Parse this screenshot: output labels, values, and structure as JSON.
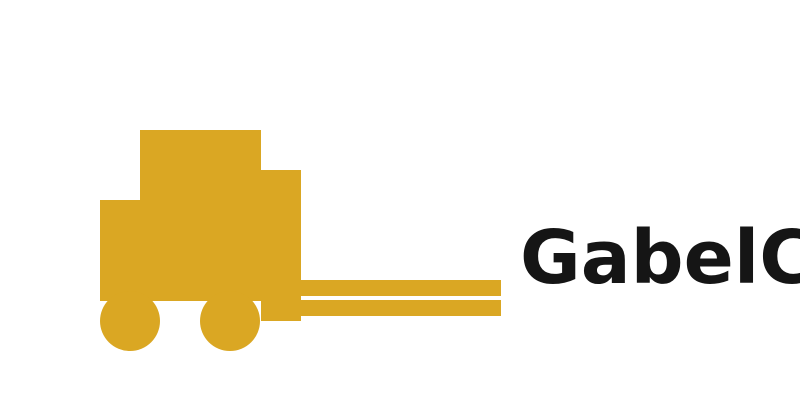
{
  "logo": {
    "icon_name": "forklift-icon",
    "brand_color": "#DAA723",
    "wordmark": "GabelC",
    "wordmark_color": "#151515"
  }
}
